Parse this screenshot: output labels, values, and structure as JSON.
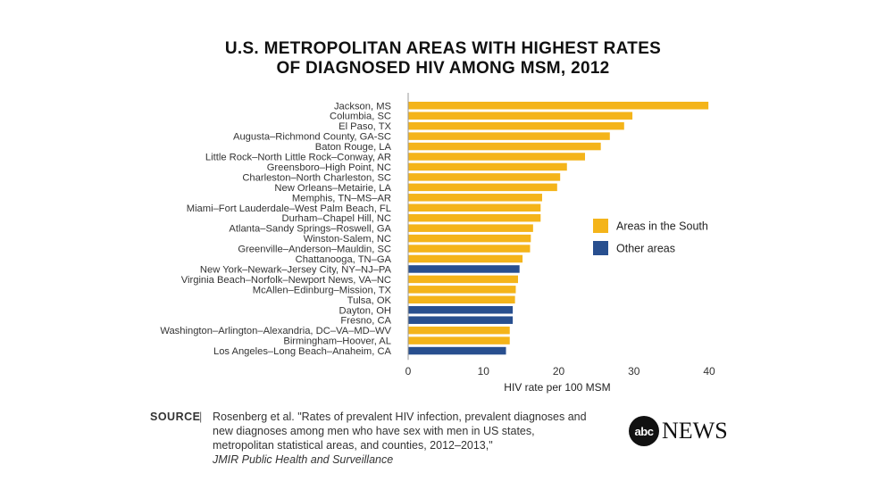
{
  "title_line1": "U.S. METROPOLITAN AREAS WITH HIGHEST RATES",
  "title_line2": "OF DIAGNOSED HIV AMONG MSM, 2012",
  "source_label": "SOURCE",
  "source_sep": "|",
  "source_text": "Rosenberg et al. \"Rates of prevalent HIV infection, prevalent diagnoses and new diagnoses among men who have sex with men in US states, metropolitan statistical areas, and counties, 2012–2013,\"",
  "source_journal": "JMIR Public Health and Surveillance",
  "logo_abc": "abc",
  "logo_news": "NEWS",
  "colors": {
    "south": "#F4B41A",
    "other": "#284F8F"
  },
  "chart_data": {
    "type": "bar",
    "orientation": "horizontal",
    "xlabel": "HIV rate per 100 MSM",
    "xlim": [
      0,
      40
    ],
    "xticks": [
      0,
      10,
      20,
      30,
      40
    ],
    "legend": [
      {
        "name": "Areas in the South",
        "key": "south"
      },
      {
        "name": "Other areas",
        "key": "other"
      }
    ],
    "legend_position": "right",
    "categories": [
      "Jackson, MS",
      "Columbia, SC",
      "El Paso, TX",
      "Augusta–Richmond County, GA-SC",
      "Baton Rouge, LA",
      "Little Rock–North Little Rock–Conway, AR",
      "Greensboro–High Point, NC",
      "Charleston–North Charleston, SC",
      "New Orleans–Metairie, LA",
      "Memphis, TN–MS–AR",
      "Miami–Fort Lauderdale–West Palm Beach, FL",
      "Durham–Chapel Hill, NC",
      "Atlanta–Sandy Springs–Roswell, GA",
      "Winston-Salem, NC",
      "Greenville–Anderson–Mauldin, SC",
      "Chattanooga, TN–GA",
      "New York–Newark–Jersey City, NY–NJ–PA",
      "Virginia Beach–Norfolk–Newport News, VA–NC",
      "McAllen–Edinburg–Mission, TX",
      "Tulsa, OK",
      "Dayton, OH",
      "Fresno, CA",
      "Washington–Arlington–Alexandria, DC–VA–MD–WV",
      "Birmingham–Hoover, AL",
      "Los Angeles–Long Beach–Anaheim, CA"
    ],
    "values": [
      39.9,
      29.8,
      28.7,
      26.8,
      25.6,
      23.5,
      21.1,
      20.2,
      19.8,
      17.8,
      17.6,
      17.6,
      16.6,
      16.3,
      16.2,
      15.2,
      14.8,
      14.6,
      14.3,
      14.2,
      13.9,
      13.9,
      13.5,
      13.5,
      13.0
    ],
    "groups": [
      "south",
      "south",
      "south",
      "south",
      "south",
      "south",
      "south",
      "south",
      "south",
      "south",
      "south",
      "south",
      "south",
      "south",
      "south",
      "south",
      "other",
      "south",
      "south",
      "south",
      "other",
      "other",
      "south",
      "south",
      "other"
    ]
  }
}
